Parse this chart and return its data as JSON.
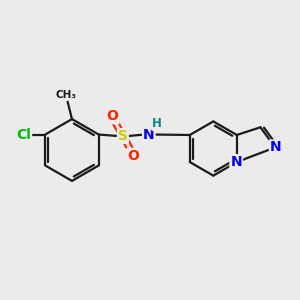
{
  "background_color": "#ebebeb",
  "bond_color": "#1a1a1a",
  "bond_width": 1.6,
  "atom_colors": {
    "Cl": "#00bb00",
    "S": "#cccc00",
    "O": "#ff2200",
    "N": "#0000ee",
    "H": "#008888",
    "C": "#1a1a1a"
  },
  "font_size_atom": 10,
  "font_size_small": 8.5
}
